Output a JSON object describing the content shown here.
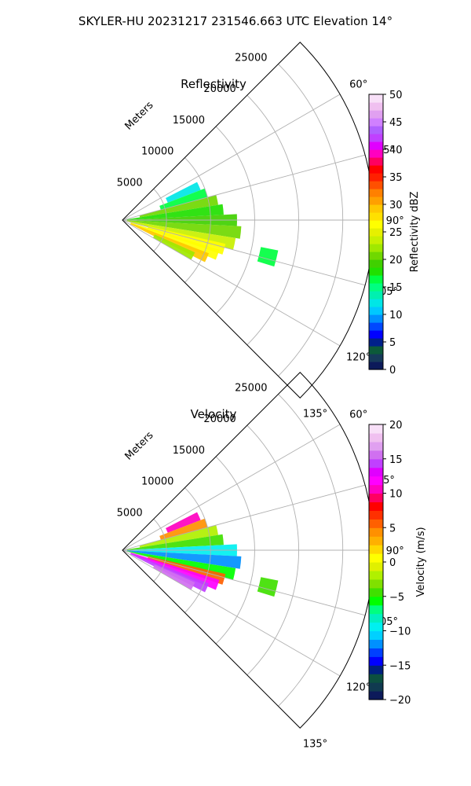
{
  "figure": {
    "suptitle": "SKYLER-HU  20231217  231546.663 UTC Elevation 14°"
  },
  "chart_data": [
    {
      "type": "polar-sector",
      "title": "Reflectivity",
      "range_label": "Meters",
      "theta_range_deg": [
        45,
        135
      ],
      "r_max": 28500,
      "r_ticks": [
        5000,
        10000,
        15000,
        20000,
        25000
      ],
      "r_tick_labels": [
        "5000",
        "10000",
        "15000",
        "20000",
        "25000"
      ],
      "theta_ticks": [
        60,
        75,
        90,
        105,
        120,
        135
      ],
      "theta_tick_labels": [
        "60°",
        "75°",
        "90°",
        "105°",
        "120°",
        "135°"
      ],
      "grid": true,
      "colorbar": {
        "label": "Reflectivity dBZ",
        "min": 0,
        "max": 50,
        "ticks": [
          0,
          5,
          10,
          15,
          20,
          25,
          30,
          35,
          40,
          45,
          50
        ],
        "tick_labels": [
          "0",
          "5",
          "10",
          "15",
          "20",
          "25",
          "30",
          "35",
          "40",
          "45",
          "50"
        ],
        "colors": [
          "#0c1a5a",
          "#163a5a",
          "#0c5a3a",
          "#00208a",
          "#0000ff",
          "#0048ff",
          "#0090ff",
          "#00c8ff",
          "#00e6e6",
          "#00f0b0",
          "#00ff80",
          "#00ff40",
          "#20e000",
          "#40d000",
          "#70d800",
          "#a0e800",
          "#c8f000",
          "#e6f000",
          "#ffff00",
          "#ffe000",
          "#ffc800",
          "#ffa000",
          "#ff8000",
          "#ff5000",
          "#ff2000",
          "#ff0000",
          "#ff0060",
          "#ff00c0",
          "#e000ff",
          "#c040ff",
          "#b060ff",
          "#d080ff",
          "#e0a0f0",
          "#f0c0f0",
          "#f8e0f8"
        ]
      },
      "echoes": [
        {
          "az": 66,
          "r0": 5500,
          "r1": 9500,
          "value": 12
        },
        {
          "az": 72,
          "r0": 4500,
          "r1": 10000,
          "value": 16
        },
        {
          "az": 78,
          "r0": 2000,
          "r1": 11000,
          "value": 20
        },
        {
          "az": 84,
          "r0": 500,
          "r1": 11500,
          "value": 18
        },
        {
          "az": 90,
          "r0": 500,
          "r1": 13000,
          "value": 19
        },
        {
          "az": 96,
          "r0": 500,
          "r1": 13500,
          "value": 21
        },
        {
          "az": 102,
          "r0": 500,
          "r1": 13000,
          "value": 24
        },
        {
          "az": 106,
          "r0": 3000,
          "r1": 12000,
          "value": 27
        },
        {
          "az": 110,
          "r0": 1000,
          "r1": 11500,
          "value": 26
        },
        {
          "az": 114,
          "r0": 1000,
          "r1": 10500,
          "value": 29
        },
        {
          "az": 117,
          "r0": 4000,
          "r1": 9000,
          "value": 22
        },
        {
          "az": 104,
          "r0": 16000,
          "r1": 18000,
          "value": 17
        }
      ]
    },
    {
      "type": "polar-sector",
      "title": "Velocity",
      "range_label": "Meters",
      "theta_range_deg": [
        45,
        135
      ],
      "r_max": 28500,
      "r_ticks": [
        5000,
        10000,
        15000,
        20000,
        25000
      ],
      "r_tick_labels": [
        "5000",
        "10000",
        "15000",
        "20000",
        "25000"
      ],
      "theta_ticks": [
        60,
        75,
        90,
        105,
        120,
        135
      ],
      "theta_tick_labels": [
        "60°",
        "75°",
        "90°",
        "105°",
        "120°",
        "135°"
      ],
      "grid": true,
      "colorbar": {
        "label": "Velocity (m/s)",
        "min": -20,
        "max": 20,
        "ticks": [
          -20,
          -15,
          -10,
          -5,
          0,
          5,
          10,
          15,
          20
        ],
        "tick_labels": [
          "−20",
          "−15",
          "−10",
          "−5",
          "0",
          "5",
          "10",
          "15",
          "20"
        ],
        "colors": [
          "#0c1a5a",
          "#103a50",
          "#0c5040",
          "#002080",
          "#0000ff",
          "#0040ff",
          "#0090ff",
          "#00d0ff",
          "#00f0f0",
          "#00f0c0",
          "#00ff80",
          "#00ff00",
          "#40e000",
          "#80e000",
          "#b0f000",
          "#e0f000",
          "#ffff00",
          "#ffd800",
          "#ffb000",
          "#ff9000",
          "#ff6000",
          "#ff3000",
          "#ff0000",
          "#ff0060",
          "#ff00c0",
          "#ff00ff",
          "#e000ff",
          "#c040ff",
          "#d070f0",
          "#e0a0f0",
          "#f0c0f0",
          "#f8e0f8"
        ]
      },
      "echoes": [
        {
          "az": 66,
          "r0": 5500,
          "r1": 9500,
          "value": 10
        },
        {
          "az": 72,
          "r0": 4500,
          "r1": 10000,
          "value": 4
        },
        {
          "az": 78,
          "r0": 2000,
          "r1": 11000,
          "value": -2
        },
        {
          "az": 84,
          "r0": 500,
          "r1": 11500,
          "value": -5
        },
        {
          "az": 90,
          "r0": 500,
          "r1": 13000,
          "value": -9
        },
        {
          "az": 96,
          "r0": 500,
          "r1": 13500,
          "value": -12
        },
        {
          "az": 102,
          "r0": 500,
          "r1": 13000,
          "value": -6
        },
        {
          "az": 106,
          "r0": 3000,
          "r1": 12000,
          "value": 5
        },
        {
          "az": 110,
          "r0": 1000,
          "r1": 11500,
          "value": 12
        },
        {
          "az": 114,
          "r0": 1000,
          "r1": 10500,
          "value": 14
        },
        {
          "az": 117,
          "r0": 4000,
          "r1": 9000,
          "value": 16
        },
        {
          "az": 104,
          "r0": 16000,
          "r1": 18000,
          "value": -5
        }
      ]
    }
  ]
}
